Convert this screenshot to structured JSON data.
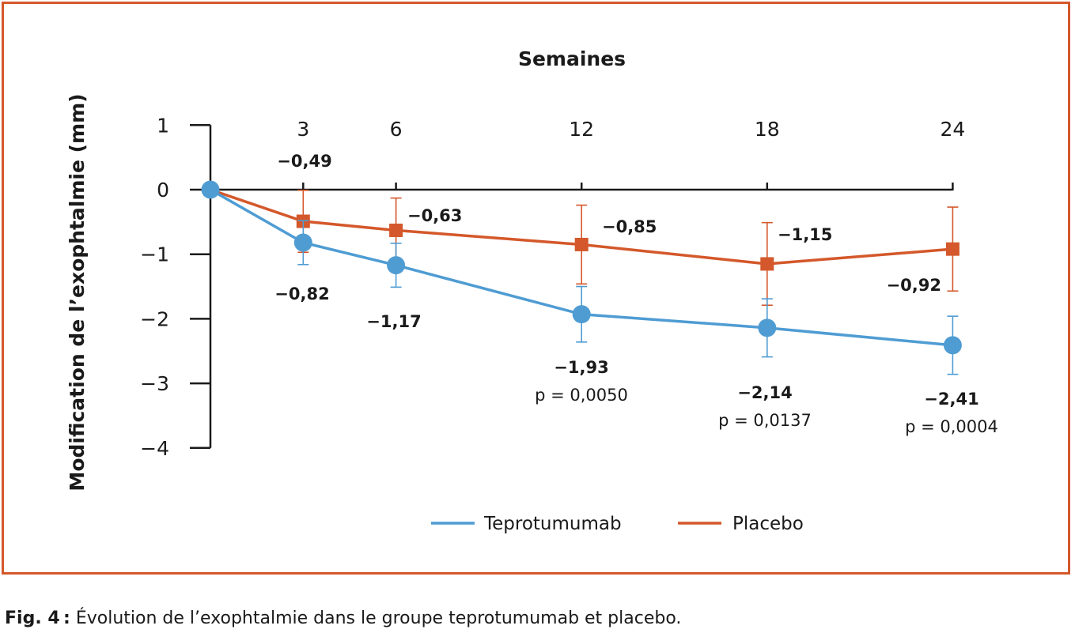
{
  "colors": {
    "frame": "#d4582b",
    "teprotumumab": "#4f9cd3",
    "placebo": "#d4582b",
    "axis": "#1a1a1a"
  },
  "caption": {
    "fig": "Fig. 4 :",
    "text": " Évolution de l’exophtalmie dans le groupe teprotumumab et placebo."
  },
  "chart_data": {
    "type": "line",
    "title": "",
    "xlabel": "Semaines",
    "ylabel": "Modification de l’exophtalmie (mm)",
    "x": [
      0,
      3,
      6,
      12,
      18,
      24
    ],
    "x_tick_labels": [
      "3",
      "6",
      "12",
      "18",
      "24"
    ],
    "y_ticks": [
      1,
      0,
      -1,
      -2,
      -3,
      -4
    ],
    "y_tick_labels": [
      "1",
      "0",
      "−1",
      "−2",
      "−3",
      "−4"
    ],
    "ylim": [
      -4,
      1
    ],
    "xlim": [
      0,
      24
    ],
    "legend_position": "bottom",
    "series": [
      {
        "name": "Teprotumumab",
        "marker": "circle",
        "values": [
          0,
          -0.82,
          -1.17,
          -1.93,
          -2.14,
          -2.41
        ],
        "error": [
          0,
          0.34,
          0.34,
          0.43,
          0.45,
          0.45
        ],
        "labels": [
          "",
          "−0,82",
          "−1,17",
          "−1,93",
          "−2,14",
          "−2,41"
        ],
        "p_values": [
          "",
          "",
          "",
          "p = 0,0050",
          "p = 0,0137",
          "p = 0,0004"
        ]
      },
      {
        "name": "Placebo",
        "marker": "square",
        "values": [
          0,
          -0.49,
          -0.63,
          -0.85,
          -1.15,
          -0.92
        ],
        "error": [
          0,
          0.48,
          0.5,
          0.61,
          0.64,
          0.65
        ],
        "labels": [
          "",
          "−0,49",
          "−0,63",
          "−0,85",
          "−1,15",
          "−0,92"
        ]
      }
    ]
  }
}
